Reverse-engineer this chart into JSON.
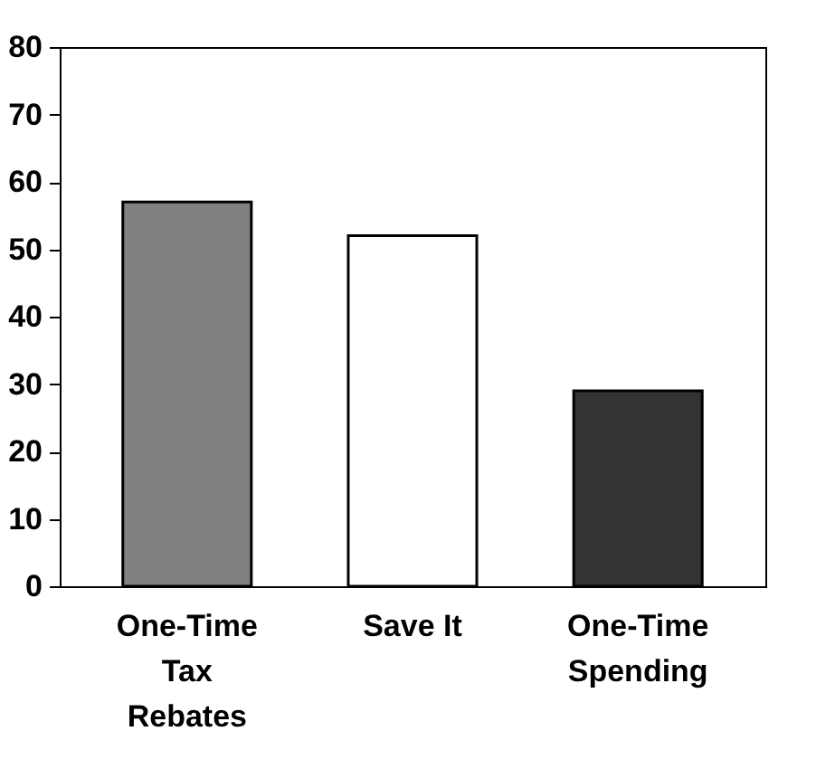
{
  "chart_data": {
    "type": "bar",
    "categories": [
      "One-Time Tax Rebates",
      "Save It",
      "One-Time Spending"
    ],
    "values": [
      57,
      52,
      29
    ],
    "colors": [
      "#808080",
      "#ffffff",
      "#333333"
    ],
    "ylim": [
      0,
      80
    ],
    "yticks": [
      0,
      10,
      20,
      30,
      40,
      50,
      60,
      70,
      80
    ],
    "grid": false
  }
}
